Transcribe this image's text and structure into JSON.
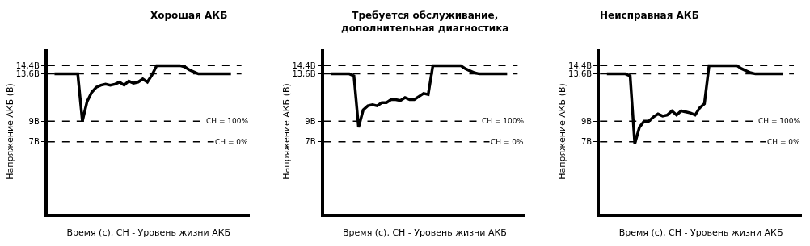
{
  "chart_data": [
    {
      "type": "line",
      "title": "Хорошая АКБ",
      "xlabel": "Время (с), СН - Уровень жизни АКБ",
      "ylabel": "Напряжение АКБ (В)",
      "categories": [
        null,
        null,
        null,
        null,
        null,
        null,
        null,
        null,
        null,
        null,
        null,
        null,
        null,
        null,
        null,
        null,
        null,
        null,
        null,
        null,
        null,
        null,
        null,
        null,
        null,
        null,
        null,
        null,
        null,
        null,
        null,
        null,
        null,
        null,
        null,
        null,
        null,
        null,
        null
      ],
      "series": [
        {
          "color": "#000000",
          "values": [
            13.6,
            13.6,
            13.6,
            13.6,
            13.6,
            13.6,
            9,
            10.9,
            11.8,
            12.3,
            12.5,
            12.6,
            12.5,
            12.6,
            12.8,
            12.5,
            12.9,
            12.7,
            12.8,
            13.1,
            12.8,
            13.5,
            14.4,
            14.4,
            14.4,
            14.4,
            14.4,
            14.4,
            14.3,
            14.0,
            13.8,
            13.6,
            13.6,
            13.6,
            13.6,
            13.6,
            13.6,
            13.6,
            13.6
          ]
        }
      ],
      "ylim": [
        0,
        16
      ],
      "yticks": [
        {
          "value": 7,
          "label": "7В"
        },
        {
          "value": 9,
          "label": "9В"
        },
        {
          "value": 13.6,
          "label": "13,6В"
        },
        {
          "value": 14.4,
          "label": "14,4В"
        }
      ],
      "ref_lines": [
        {
          "axis": "y",
          "value": 14.4,
          "color": "#000000",
          "line_style": "dashed"
        },
        {
          "axis": "y",
          "value": 13.6,
          "color": "#000000",
          "line_style": "dashed"
        },
        {
          "axis": "y",
          "value": 9,
          "color": "#000000",
          "line_style": "dashed"
        },
        {
          "axis": "y",
          "value": 7,
          "color": "#000000",
          "line_style": "dashed"
        }
      ],
      "annotations": [
        {
          "text": "СН = 100%",
          "y": 9
        },
        {
          "text": "СН = 0%",
          "y": 7
        }
      ],
      "marker": "none",
      "line_style": "solid"
    },
    {
      "type": "line",
      "title": "Требуется обслуживание,\nдополнительная диагностика",
      "xlabel": "Время (с), СН - Уровень жизни АКБ",
      "ylabel": "Напряжение АКБ (В)",
      "categories": [
        null,
        null,
        null,
        null,
        null,
        null,
        null,
        null,
        null,
        null,
        null,
        null,
        null,
        null,
        null,
        null,
        null,
        null,
        null,
        null,
        null,
        null,
        null,
        null,
        null,
        null,
        null,
        null,
        null,
        null,
        null,
        null,
        null,
        null,
        null,
        null,
        null,
        null,
        null
      ],
      "series": [
        {
          "color": "#000000",
          "values": [
            13.6,
            13.6,
            13.6,
            13.6,
            13.6,
            13.4,
            8.4,
            10.1,
            10.5,
            10.6,
            10.5,
            10.8,
            10.8,
            11.1,
            11.1,
            11.0,
            11.3,
            11.1,
            11.1,
            11.4,
            11.7,
            11.6,
            14.4,
            14.4,
            14.4,
            14.4,
            14.4,
            14.4,
            14.4,
            14.1,
            13.9,
            13.7,
            13.6,
            13.6,
            13.6,
            13.6,
            13.6,
            13.6,
            13.6
          ]
        }
      ],
      "ylim": [
        0,
        16
      ],
      "yticks": [
        {
          "value": 7,
          "label": "7В"
        },
        {
          "value": 9,
          "label": "9В"
        },
        {
          "value": 13.6,
          "label": "13,6В"
        },
        {
          "value": 14.4,
          "label": "14,4В"
        }
      ],
      "ref_lines": [
        {
          "axis": "y",
          "value": 14.4,
          "color": "#000000",
          "line_style": "dashed"
        },
        {
          "axis": "y",
          "value": 13.6,
          "color": "#000000",
          "line_style": "dashed"
        },
        {
          "axis": "y",
          "value": 9,
          "color": "#000000",
          "line_style": "dashed"
        },
        {
          "axis": "y",
          "value": 7,
          "color": "#000000",
          "line_style": "dashed"
        }
      ],
      "annotations": [
        {
          "text": "СН = 100%",
          "y": 9
        },
        {
          "text": "СН = 0%",
          "y": 7
        }
      ],
      "marker": "none",
      "line_style": "solid"
    },
    {
      "type": "line",
      "title": "Неисправная АКБ",
      "xlabel": "Время (с), СН - Уровень жизни АКБ",
      "ylabel": "Напряжение АКБ (В)",
      "categories": [
        null,
        null,
        null,
        null,
        null,
        null,
        null,
        null,
        null,
        null,
        null,
        null,
        null,
        null,
        null,
        null,
        null,
        null,
        null,
        null,
        null,
        null,
        null,
        null,
        null,
        null,
        null,
        null,
        null,
        null,
        null,
        null,
        null,
        null,
        null,
        null,
        null,
        null,
        null
      ],
      "series": [
        {
          "color": "#000000",
          "values": [
            13.6,
            13.6,
            13.6,
            13.6,
            13.6,
            13.4,
            6.8,
            8.4,
            9.0,
            9.0,
            9.4,
            9.7,
            9.5,
            9.6,
            10.0,
            9.6,
            10.0,
            9.9,
            9.8,
            9.6,
            10.3,
            10.7,
            14.4,
            14.4,
            14.4,
            14.4,
            14.4,
            14.4,
            14.4,
            14.1,
            13.9,
            13.7,
            13.6,
            13.6,
            13.6,
            13.6,
            13.6,
            13.6,
            13.6
          ]
        }
      ],
      "ylim": [
        0,
        16
      ],
      "yticks": [
        {
          "value": 7,
          "label": "7В"
        },
        {
          "value": 9,
          "label": "9В"
        },
        {
          "value": 13.6,
          "label": "13,6В"
        },
        {
          "value": 14.4,
          "label": "14,4В"
        }
      ],
      "ref_lines": [
        {
          "axis": "y",
          "value": 14.4,
          "color": "#000000",
          "line_style": "dashed"
        },
        {
          "axis": "y",
          "value": 13.6,
          "color": "#000000",
          "line_style": "dashed"
        },
        {
          "axis": "y",
          "value": 9,
          "color": "#000000",
          "line_style": "dashed"
        },
        {
          "axis": "y",
          "value": 7,
          "color": "#000000",
          "line_style": "dashed"
        }
      ],
      "annotations": [
        {
          "text": "СН = 100%",
          "y": 9
        },
        {
          "text": "СН = 0%",
          "y": 7
        }
      ],
      "marker": "none",
      "line_style": "solid"
    }
  ]
}
